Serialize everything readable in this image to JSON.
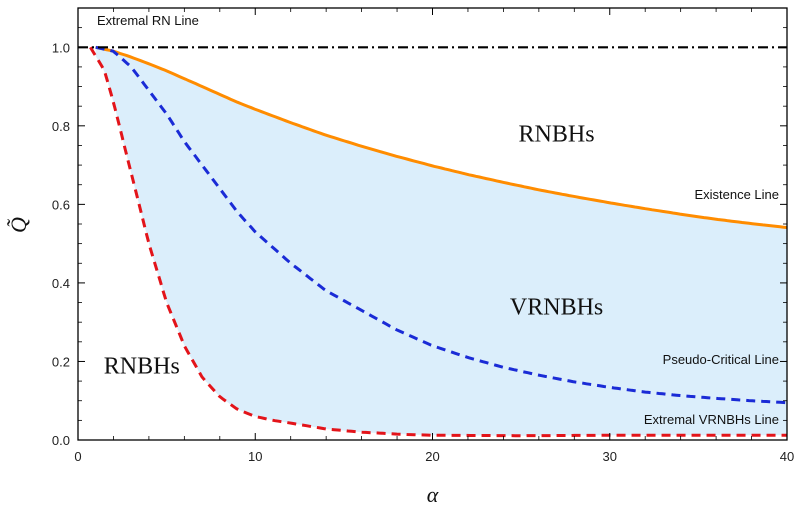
{
  "chart_data": {
    "type": "line",
    "title": "",
    "xlabel": "α",
    "ylabel": "Q̃",
    "xlim": [
      0,
      40
    ],
    "ylim": [
      0,
      1.1
    ],
    "x_ticks": [
      0,
      10,
      20,
      30,
      40
    ],
    "y_ticks": [
      0.0,
      0.2,
      0.4,
      0.6,
      0.8,
      1.0
    ],
    "x_tick_labels": [
      "0",
      "10",
      "20",
      "30",
      "40"
    ],
    "y_tick_labels": [
      "0.0",
      "0.2",
      "0.4",
      "0.6",
      "0.8",
      "1.0"
    ],
    "series": [
      {
        "name": "Existence Line",
        "color": "#ff8c00",
        "style": "solid",
        "x": [
          1,
          2,
          3,
          4,
          5,
          6,
          7,
          8,
          9,
          10,
          12,
          14,
          16,
          18,
          20,
          22,
          24,
          26,
          28,
          30,
          32,
          34,
          36,
          38,
          40
        ],
        "y": [
          1.0,
          0.99,
          0.975,
          0.958,
          0.94,
          0.92,
          0.9,
          0.88,
          0.86,
          0.842,
          0.808,
          0.776,
          0.748,
          0.722,
          0.698,
          0.676,
          0.656,
          0.637,
          0.62,
          0.604,
          0.589,
          0.575,
          0.562,
          0.551,
          0.541
        ]
      },
      {
        "name": "Pseudo-Critical Line",
        "color": "#1a2bd6",
        "style": "dashed",
        "x": [
          1,
          2,
          3,
          4,
          5,
          6,
          7,
          8,
          9,
          10,
          12,
          14,
          16,
          18,
          20,
          22,
          24,
          26,
          28,
          30,
          32,
          34,
          36,
          38,
          40
        ],
        "y": [
          1.0,
          0.99,
          0.95,
          0.89,
          0.83,
          0.76,
          0.7,
          0.64,
          0.58,
          0.53,
          0.45,
          0.38,
          0.33,
          0.28,
          0.24,
          0.21,
          0.185,
          0.165,
          0.148,
          0.134,
          0.122,
          0.113,
          0.106,
          0.1,
          0.095
        ]
      },
      {
        "name": "Extremal VRNBHs Line",
        "color": "#e3141a",
        "style": "dashed",
        "x": [
          0.7,
          1.5,
          2,
          3,
          4,
          5,
          6,
          7,
          8,
          9,
          10,
          11,
          12,
          14,
          16,
          18,
          20,
          25,
          30,
          35,
          40
        ],
        "y": [
          1.0,
          0.94,
          0.86,
          0.68,
          0.5,
          0.35,
          0.24,
          0.16,
          0.11,
          0.078,
          0.06,
          0.05,
          0.043,
          0.028,
          0.02,
          0.015,
          0.012,
          0.011,
          0.012,
          0.012,
          0.012
        ]
      },
      {
        "name": "Extremal RN Line",
        "color": "#000000",
        "style": "dashdot",
        "x": [
          0,
          40
        ],
        "y": [
          1.0,
          1.0
        ]
      }
    ],
    "line_labels": [
      "Extremal RN Line",
      "Existence Line",
      "Pseudo-Critical Line",
      "Extremal VRNBHs Line"
    ],
    "annotations": [
      {
        "text": "RNBHs",
        "x": 27,
        "y": 0.78
      },
      {
        "text": "VRNBHs",
        "x": 27,
        "y": 0.34
      },
      {
        "text": "RNBHs",
        "x": 3.6,
        "y": 0.19
      }
    ],
    "shaded_region": {
      "between": [
        "Extremal VRNBHs Line",
        "Existence Line"
      ],
      "color": "#dbeefb"
    },
    "grid": false,
    "legend": "none"
  }
}
